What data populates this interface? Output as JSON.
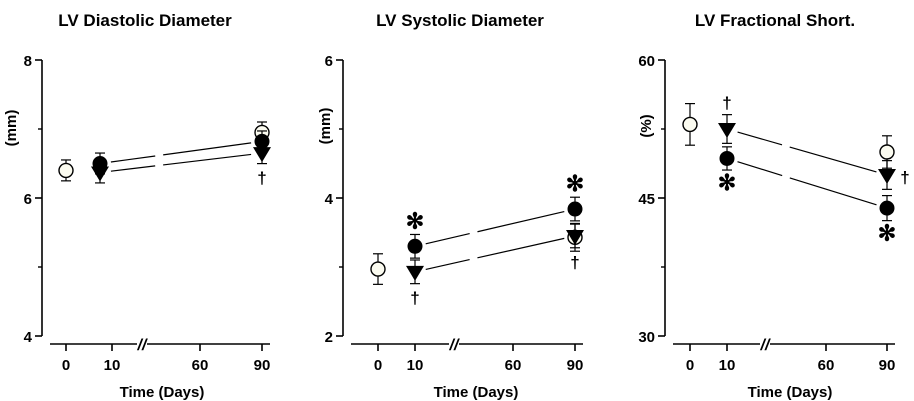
{
  "chart_data": [
    {
      "type": "scatter",
      "title": "LV Diastolic Diameter",
      "ylabel": "(mm)",
      "xlabel": "Time (Days)",
      "ylim": [
        4,
        8
      ],
      "yticks": [
        "4",
        "6",
        "8"
      ],
      "xticks": [
        "0",
        "10",
        "60",
        "90"
      ],
      "axis_break": "//",
      "series": [
        {
          "marker": "open-circle",
          "points": [
            {
              "x": "0",
              "y": 6.4,
              "err": 0.05
            },
            {
              "x": "90",
              "y": 6.95,
              "err": 0.05
            }
          ],
          "annotations": []
        },
        {
          "marker": "filled-circle",
          "points": [
            {
              "x": "7",
              "y": 6.5,
              "err": 0.05
            },
            {
              "x": "90",
              "y": 6.82,
              "err": 0.05
            }
          ],
          "annotations": []
        },
        {
          "marker": "filled-triangle",
          "points": [
            {
              "x": "7",
              "y": 6.37,
              "err": 0.05
            },
            {
              "x": "90",
              "y": 6.65,
              "err": 0.05
            }
          ],
          "annotations": [
            {
              "at": "90",
              "text": "†",
              "pos": "below"
            }
          ]
        }
      ]
    },
    {
      "type": "scatter",
      "title": "LV Systolic Diameter",
      "ylabel": "(mm)",
      "xlabel": "Time (Days)",
      "ylim": [
        2,
        6
      ],
      "yticks": [
        "2",
        "4",
        "6"
      ],
      "xticks": [
        "0",
        "10",
        "60",
        "90"
      ],
      "axis_break": "//",
      "series": [
        {
          "marker": "open-circle",
          "points": [
            {
              "x": "0",
              "y": 2.97,
              "err": 0.12
            },
            {
              "x": "90",
              "y": 3.43,
              "err": 0.1
            }
          ],
          "annotations": []
        },
        {
          "marker": "filled-circle",
          "points": [
            {
              "x": "7",
              "y": 3.3,
              "err": 0.07
            },
            {
              "x": "90",
              "y": 3.84,
              "err": 0.07
            }
          ],
          "annotations": [
            {
              "at": "7",
              "text": "✻",
              "pos": "above"
            },
            {
              "at": "90",
              "text": "✻",
              "pos": "above"
            }
          ]
        },
        {
          "marker": "filled-triangle",
          "points": [
            {
              "x": "7",
              "y": 2.93,
              "err": 0.07
            },
            {
              "x": "90",
              "y": 3.45,
              "err": 0.07
            }
          ],
          "annotations": [
            {
              "at": "7",
              "text": "†",
              "pos": "below"
            },
            {
              "at": "90",
              "text": "†",
              "pos": "below"
            }
          ]
        }
      ]
    },
    {
      "type": "scatter",
      "title": "LV Fractional Short.",
      "ylabel": "(%)",
      "xlabel": "Time (Days)",
      "ylim": [
        30,
        60
      ],
      "yticks": [
        "30",
        "45",
        "60"
      ],
      "xticks": [
        "0",
        "10",
        "60",
        "90"
      ],
      "axis_break": "//",
      "series": [
        {
          "marker": "open-circle",
          "points": [
            {
              "x": "0",
              "y": 53,
              "err": 1.5
            },
            {
              "x": "90",
              "y": 50,
              "err": 1
            }
          ],
          "annotations": []
        },
        {
          "marker": "filled-circle",
          "points": [
            {
              "x": "7",
              "y": 49.3,
              "err": 0.5
            },
            {
              "x": "90",
              "y": 43.9,
              "err": 0.6
            }
          ],
          "annotations": [
            {
              "at": "7",
              "text": "✻",
              "pos": "below"
            },
            {
              "at": "90",
              "text": "✻",
              "pos": "below"
            }
          ]
        },
        {
          "marker": "filled-triangle",
          "points": [
            {
              "x": "7",
              "y": 52.5,
              "err": 0.8
            },
            {
              "x": "90",
              "y": 47.5,
              "err": 0.8
            }
          ],
          "annotations": [
            {
              "at": "7",
              "text": "†",
              "pos": "above"
            },
            {
              "at": "90",
              "text": "†",
              "pos": "right"
            }
          ]
        }
      ]
    }
  ]
}
